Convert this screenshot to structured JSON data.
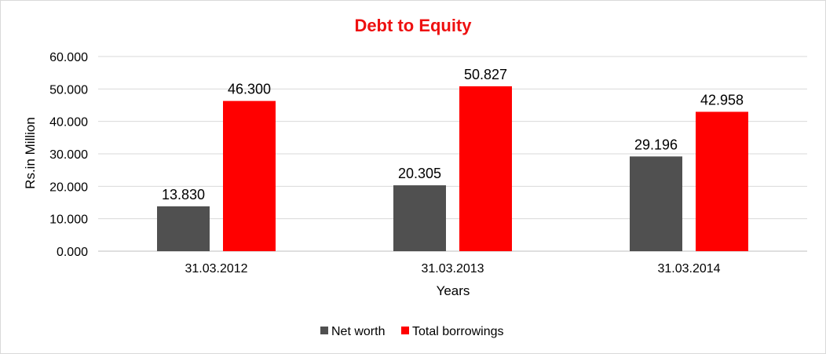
{
  "chart_data": {
    "type": "bar",
    "title": "Debt to Equity",
    "title_color": "#ee1111",
    "xlabel": "Years",
    "ylabel": "Rs.in Million",
    "categories": [
      "31.03.2012",
      "31.03.2013",
      "31.03.2014"
    ],
    "series": [
      {
        "name": "Net worth",
        "color": "#505050",
        "values": [
          13.83,
          20.305,
          29.196
        ],
        "labels": [
          "13.830",
          "20.305",
          "29.196"
        ]
      },
      {
        "name": "Total borrowings",
        "color": "#ff0000",
        "values": [
          46.3,
          50.827,
          42.958
        ],
        "labels": [
          "46.300",
          "50.827",
          "42.958"
        ]
      }
    ],
    "ylim": [
      0,
      60
    ],
    "yticks": [
      {
        "value": 0,
        "label": "0.000"
      },
      {
        "value": 10,
        "label": "10.000"
      },
      {
        "value": 20,
        "label": "20.000"
      },
      {
        "value": 30,
        "label": "30.000"
      },
      {
        "value": 40,
        "label": "40.000"
      },
      {
        "value": 50,
        "label": "50.000"
      },
      {
        "value": 60,
        "label": "60.000"
      }
    ],
    "grid": true,
    "legend_position": "bottom"
  }
}
